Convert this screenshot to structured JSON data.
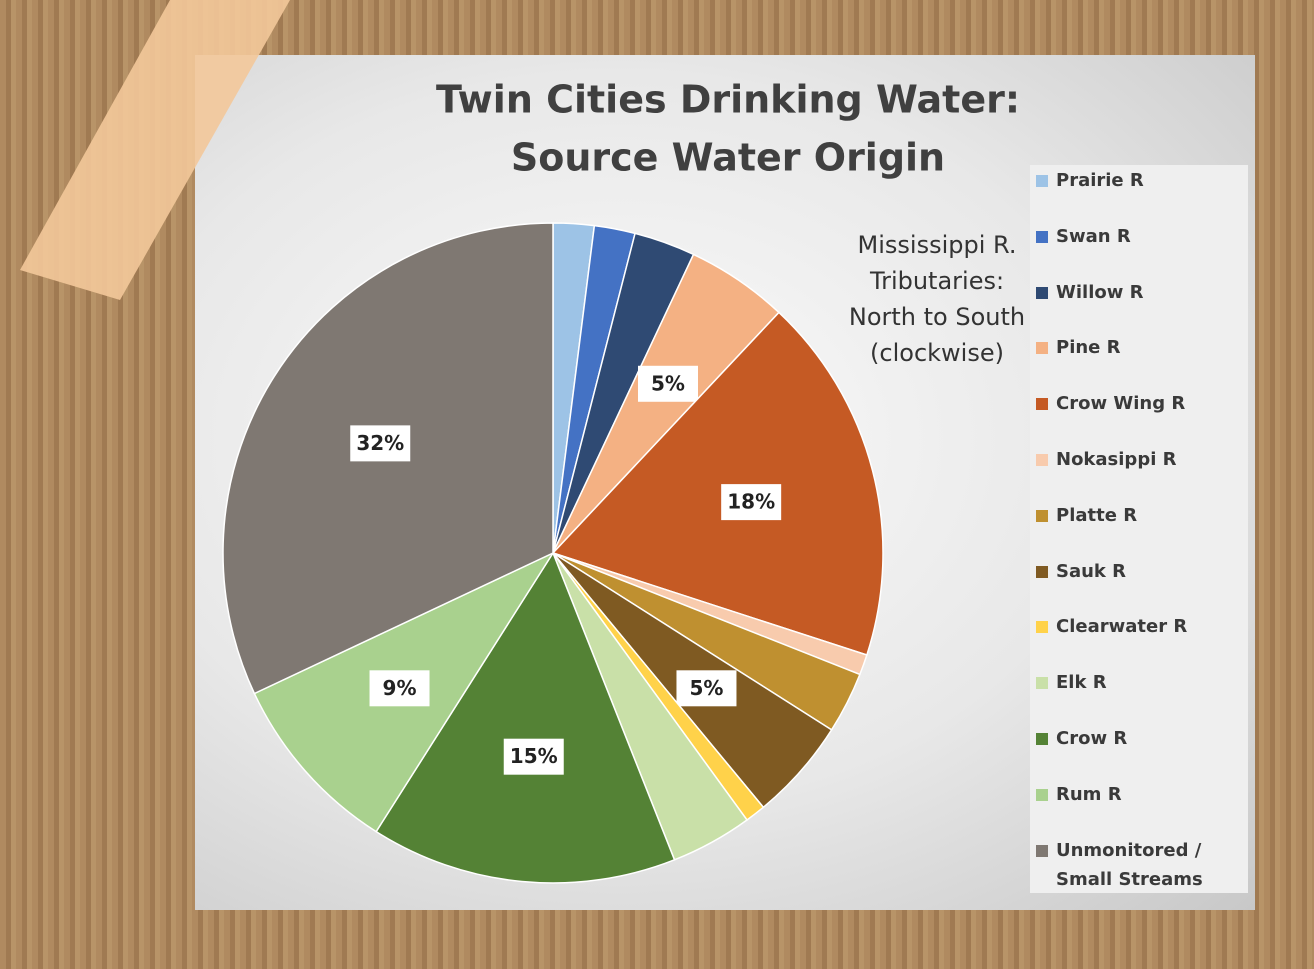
{
  "chart_data": {
    "type": "pie",
    "title": [
      "Twin Cities Drinking Water:",
      "Source Water Origin"
    ],
    "annotation": [
      "Mississippi R.",
      "Tributaries:",
      "North to South",
      "(clockwise)"
    ],
    "categories": [
      "Prairie R",
      "Swan R",
      "Willow R",
      "Pine R",
      "Crow Wing R",
      "Nokasippi R",
      "Platte R",
      "Sauk R",
      "Clearwater R",
      "Elk R",
      "Crow R",
      "Rum R",
      "Unmonitored / Small Streams"
    ],
    "values": [
      2,
      2,
      3,
      5,
      18,
      1,
      3,
      5,
      1,
      4,
      15,
      9,
      32
    ],
    "value_labels": [
      null,
      null,
      null,
      "5%",
      "18%",
      null,
      null,
      "5%",
      null,
      null,
      "15%",
      "9%",
      "32%"
    ],
    "colors": [
      "#9dc3e6",
      "#4472c4",
      "#2f4a73",
      "#f4b183",
      "#c55a24",
      "#f8cbad",
      "#bf9030",
      "#7f5a22",
      "#ffd24a",
      "#c9e0a8",
      "#548235",
      "#a9d18e",
      "#7f7872"
    ],
    "start": "top",
    "direction": "clockwise",
    "legend": "right"
  }
}
